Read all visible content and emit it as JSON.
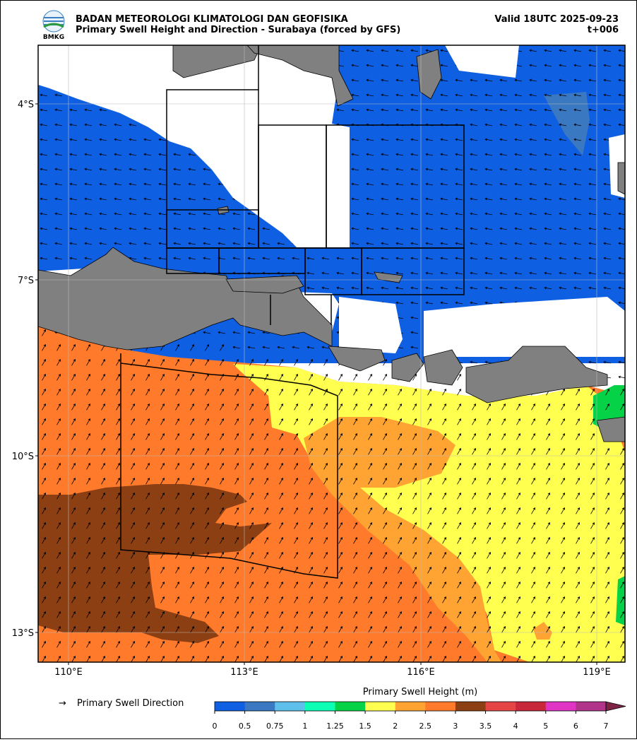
{
  "header": {
    "agency": "BADAN METEOROLOGI KLIMATOLOGI DAN GEOFISIKA",
    "title": "Primary Swell Height and Direction - Surabaya (forced by GFS)",
    "valid": "Valid 18UTC 2025-09-23",
    "step": "t+006",
    "logo_text": "BMKG"
  },
  "map": {
    "lat_labels": [
      "4°S",
      "7°S",
      "10°S",
      "13°S"
    ],
    "lon_labels": [
      "110°E",
      "113°E",
      "116°E",
      "119°E"
    ]
  },
  "legend": {
    "direction_symbol": "→",
    "direction_label": "Primary Swell Direction",
    "colorbar": {
      "title": "Primary Swell Height (m)",
      "ticks": [
        0,
        0.5,
        0.75,
        1,
        1.25,
        1.5,
        2,
        2.5,
        3,
        3.5,
        4,
        5,
        6,
        7
      ],
      "colors": [
        "#0f5fe3",
        "#3a78c2",
        "#5ec0ea",
        "#0cffb4",
        "#05d247",
        "#ffff4f",
        "#ffa332",
        "#ff7a2b",
        "#8c3f12",
        "#e54545",
        "#c9283a",
        "#df34c4",
        "#b0358a"
      ],
      "extend_color": "#7d2346"
    }
  }
}
